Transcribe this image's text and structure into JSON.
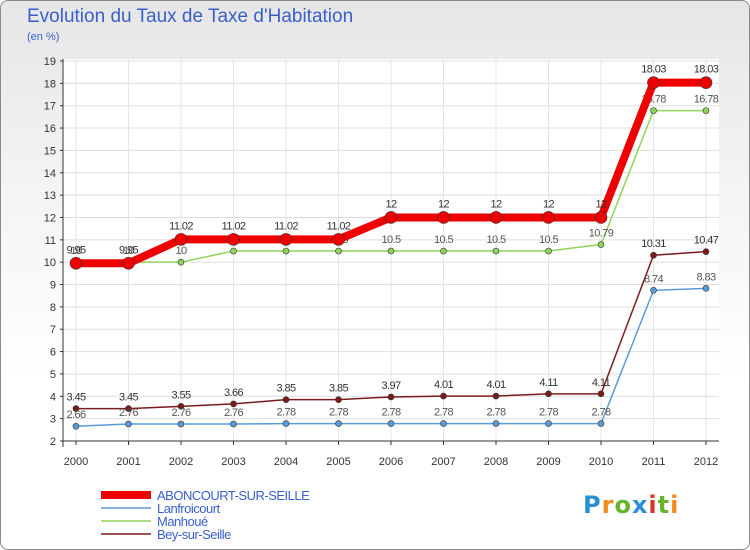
{
  "title": "Evolution du Taux de Taxe d'Habitation",
  "subtitle": "(en %)",
  "logo_text": "Proxiti",
  "chart_data": {
    "type": "line",
    "title": "Evolution du Taux de Taxe d'Habitation",
    "ylabel": "(en %)",
    "xlabel": "",
    "ylim": [
      2,
      19
    ],
    "yticks": [
      "2",
      "3",
      "4",
      "5",
      "6",
      "7",
      "8",
      "9",
      "10",
      "11",
      "12",
      "13",
      "14",
      "15",
      "16",
      "17",
      "18",
      "19"
    ],
    "categories": [
      "2000",
      "2001",
      "2002",
      "2003",
      "2004",
      "2005",
      "2006",
      "2007",
      "2008",
      "2009",
      "2010",
      "2011",
      "2012"
    ],
    "series": [
      {
        "name": "Bey-sur-Seille",
        "color": "#7a1c1c",
        "values": [
          3.45,
          3.45,
          3.55,
          3.66,
          3.85,
          3.85,
          3.97,
          4.01,
          4.01,
          4.11,
          4.11,
          10.31,
          10.47
        ],
        "labels": [
          "3.45",
          "3.45",
          "3.55",
          "3.66",
          "3.85",
          "3.85",
          "3.97",
          "4.01",
          "4.01",
          "4.11",
          "4.11",
          "10.31",
          "10.47"
        ]
      },
      {
        "name": "Lanfroicourt",
        "color": "#5b9bd5",
        "values": [
          2.66,
          2.76,
          2.76,
          2.76,
          2.78,
          2.78,
          2.78,
          2.78,
          2.78,
          2.78,
          2.78,
          8.74,
          8.83
        ],
        "labels": [
          "2.66",
          "2.76",
          "2.76",
          "2.76",
          "2.78",
          "2.78",
          "2.78",
          "2.78",
          "2.78",
          "2.78",
          "2.78",
          "8.74",
          "8.83"
        ]
      },
      {
        "name": "Manhoué",
        "color": "#8fd35a",
        "values": [
          10.0,
          10.0,
          10.0,
          10.5,
          10.5,
          10.5,
          10.5,
          10.5,
          10.5,
          10.5,
          10.79,
          16.78,
          16.78
        ],
        "labels": [
          "10",
          "10",
          "10",
          "10.5",
          "10.5",
          "10.5",
          "10.5",
          "10.5",
          "10.5",
          "10.5",
          "10.79",
          "16.78",
          "16.78"
        ]
      },
      {
        "name": "ABONCOURT-SUR-SEILLE",
        "color": "#ee0000",
        "values": [
          9.95,
          9.95,
          11.02,
          11.02,
          11.02,
          11.02,
          12.0,
          12.0,
          12.0,
          12.0,
          12.0,
          18.03,
          18.03
        ],
        "labels": [
          "9.95",
          "9.95",
          "11.02",
          "11.02",
          "11.02",
          "11.02",
          "12",
          "12",
          "12",
          "12",
          "12",
          "18.03",
          "18.03"
        ]
      }
    ],
    "legend_order": [
      "ABONCOURT-SUR-SEILLE",
      "Lanfroicourt",
      "Manhoué",
      "Bey-sur-Seille"
    ],
    "legend_position": "bottom-left",
    "grid": true
  }
}
